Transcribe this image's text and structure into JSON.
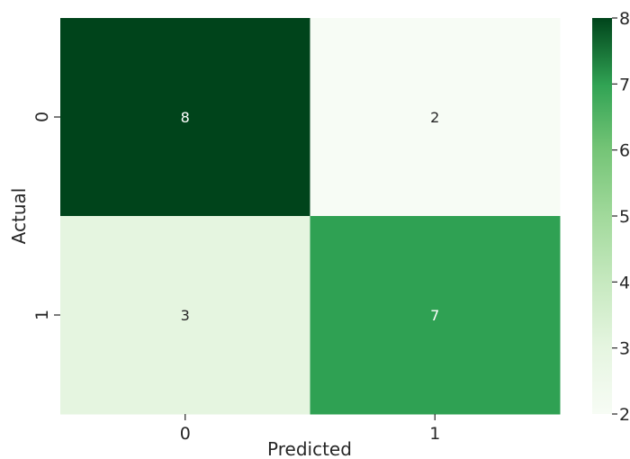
{
  "chart_data": {
    "type": "heatmap",
    "x_categories": [
      "0",
      "1"
    ],
    "y_categories": [
      "0",
      "1"
    ],
    "values": [
      [
        8,
        2
      ],
      [
        3,
        7
      ]
    ],
    "xlabel": "Predicted",
    "ylabel": "Actual",
    "colorbar": {
      "min": 2,
      "max": 8,
      "ticks": [
        "2",
        "3",
        "4",
        "5",
        "6",
        "7",
        "8"
      ],
      "colormap": "Greens"
    },
    "colors": {
      "low": "#f5fbf2",
      "high": "#00441b",
      "annotation_dark": "#262626",
      "annotation_light": "#ffffff"
    }
  }
}
